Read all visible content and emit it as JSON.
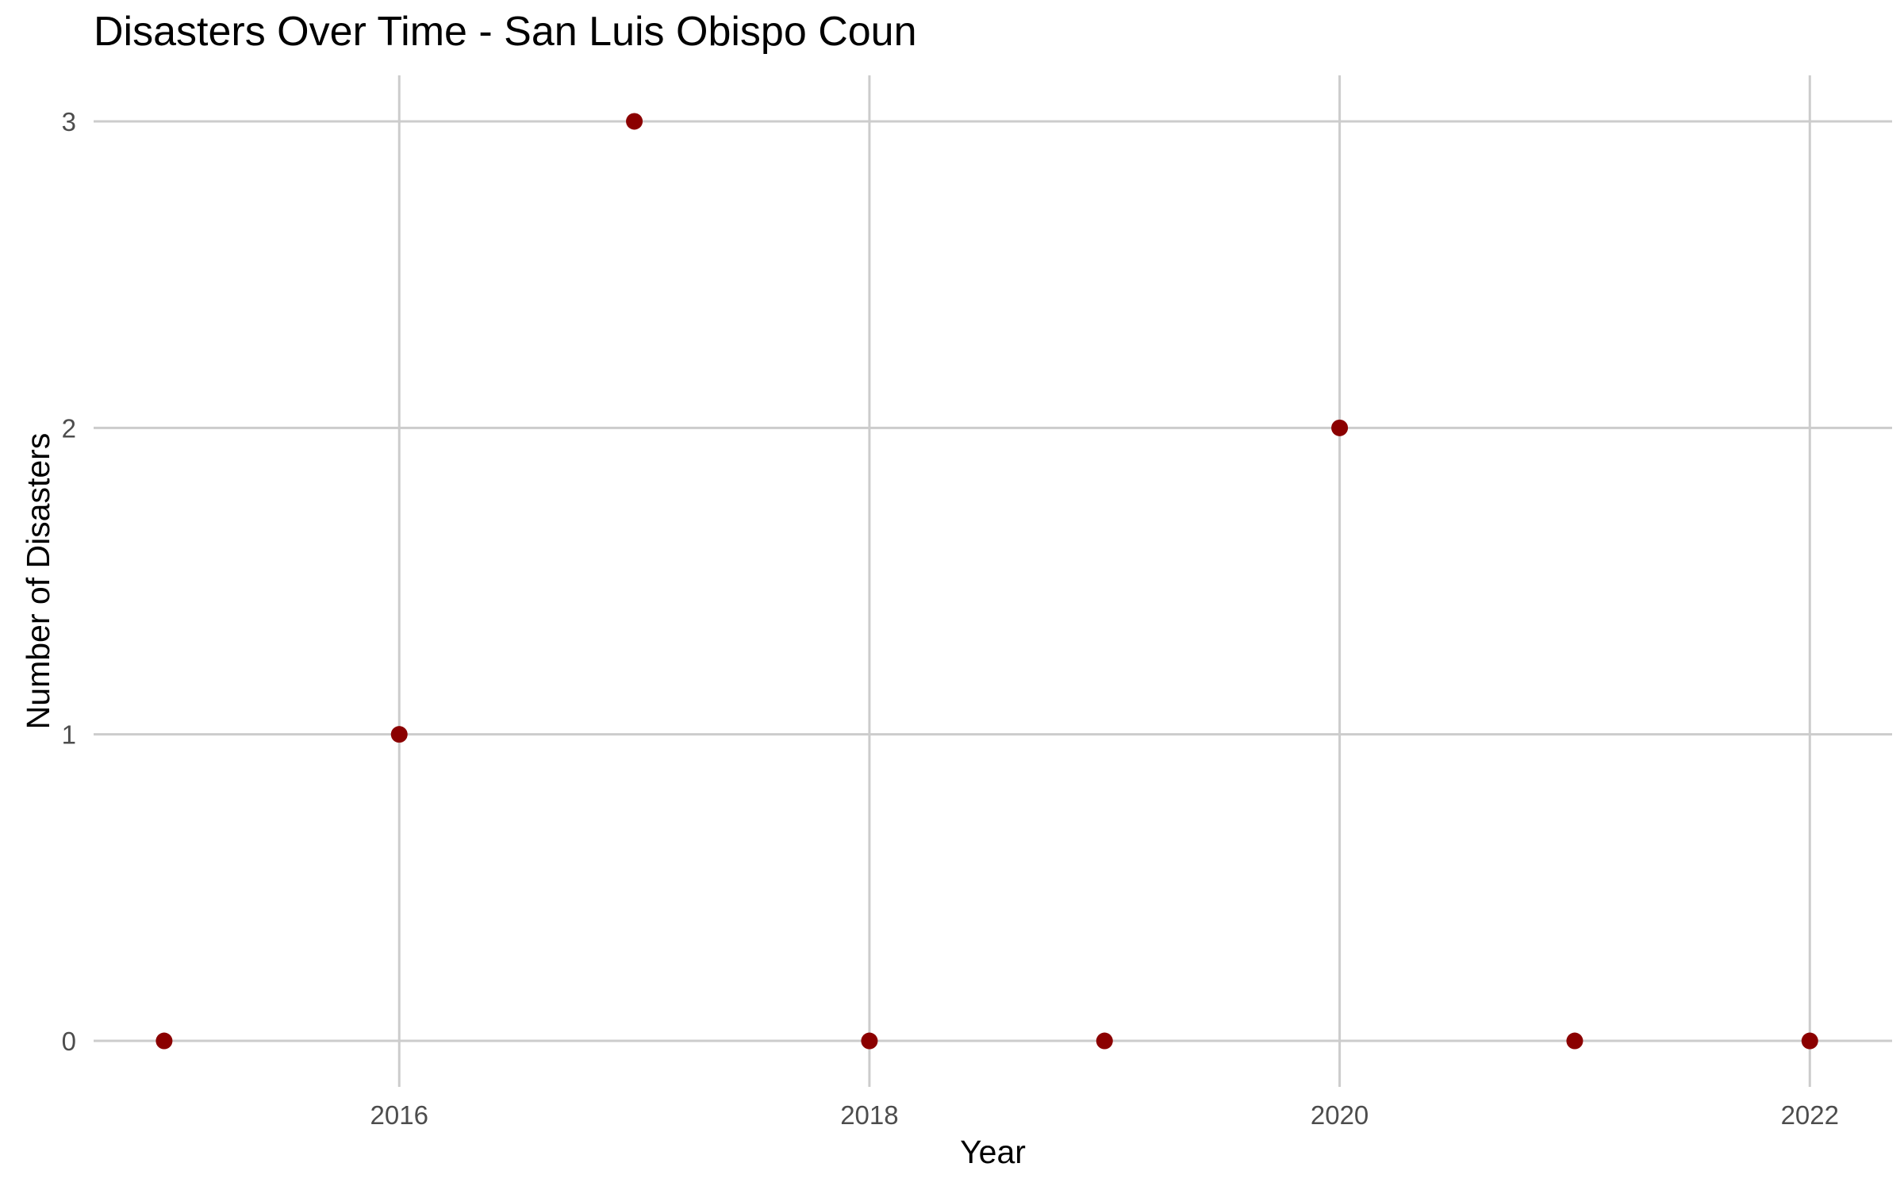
{
  "chart_data": {
    "type": "scatter",
    "title": "Disasters Over Time - San Luis Obispo Coun",
    "xlabel": "Year",
    "ylabel": "Number of Disasters",
    "x": [
      2015,
      2016,
      2017,
      2018,
      2019,
      2020,
      2021,
      2022
    ],
    "y": [
      0,
      1,
      3,
      0,
      0,
      2,
      0,
      0
    ],
    "xlim": [
      2014.7,
      2022.35
    ],
    "ylim": [
      -0.15,
      3.15
    ],
    "x_ticks": [
      2016,
      2018,
      2020,
      2022
    ],
    "x_tick_labels": [
      "2016",
      "2018",
      "2020",
      "2022"
    ],
    "y_ticks": [
      0,
      1,
      2,
      3
    ],
    "y_tick_labels": [
      "0",
      "1",
      "2",
      "3"
    ],
    "grid": true,
    "legend": "none",
    "point_color": "#8b0000",
    "grid_color": "#cccccc"
  }
}
